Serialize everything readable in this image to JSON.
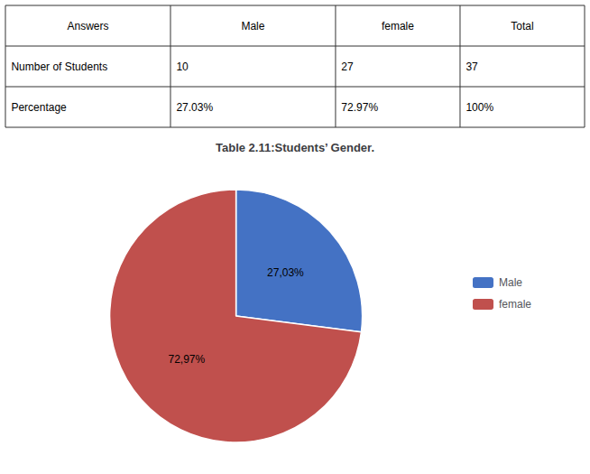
{
  "chart_data": {
    "type": "pie",
    "title": "Table 2.11:Students’ Gender.",
    "table": {
      "headers": [
        "Answers",
        "Male",
        "female",
        "Total"
      ],
      "rows": [
        [
          "Number of Students",
          "10",
          "27",
          "37"
        ],
        [
          "Percentage",
          "27.03%",
          "72.97%",
          "100%"
        ]
      ]
    },
    "categories": [
      "Male",
      "female"
    ],
    "values": [
      27.03,
      72.97
    ],
    "value_labels": [
      "27,03%",
      "72,97%"
    ],
    "colors": [
      "#4472C4",
      "#C0504D"
    ],
    "data_labels": true,
    "legend": "right"
  }
}
